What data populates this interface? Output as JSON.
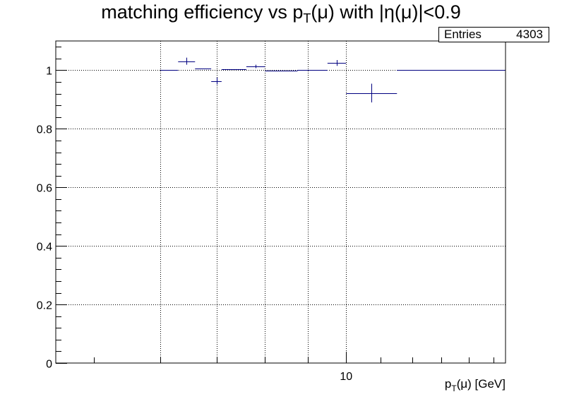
{
  "chart_data": {
    "type": "scatter",
    "title": {
      "main": "matching efficiency vs p",
      "sub": "T",
      "rest": "(μ) with |η(μ)|<0.9"
    },
    "xlabel": {
      "main": "p",
      "sub": "T",
      "rest": "(μ) [GeV]"
    },
    "ylabel": "",
    "x_scale": "log",
    "xlim": [
      4.5,
      15.5
    ],
    "ylim": [
      0,
      1.1
    ],
    "y_ticks": [
      0,
      0.2,
      0.4,
      0.6,
      0.8,
      1
    ],
    "y_tick_labels": [
      "0",
      "0.2",
      "0.4",
      "0.6",
      "0.8",
      "1"
    ],
    "x_tick_labels": [
      {
        "value": 10,
        "label": "10"
      }
    ],
    "x_grid": [
      6,
      7,
      8,
      9,
      10
    ],
    "grid": true,
    "legend": "none",
    "stats": {
      "label": "Entries",
      "value": "4303"
    },
    "points": [
      {
        "xlo": 6.0,
        "xhi": 6.3,
        "y": 1.0,
        "err": 0.0
      },
      {
        "xlo": 6.3,
        "xhi": 6.6,
        "y": 1.031,
        "err": 0.012
      },
      {
        "xlo": 6.6,
        "xhi": 6.9,
        "y": 1.006,
        "err": 0.0
      },
      {
        "xlo": 6.9,
        "xhi": 7.1,
        "y": 0.963,
        "err": 0.012
      },
      {
        "xlo": 7.1,
        "xhi": 7.6,
        "y": 1.003,
        "err": 0.0
      },
      {
        "xlo": 7.6,
        "xhi": 8.0,
        "y": 1.013,
        "err": 0.006
      },
      {
        "xlo": 8.0,
        "xhi": 8.75,
        "y": 0.998,
        "err": 0.0
      },
      {
        "xlo": 8.75,
        "xhi": 9.5,
        "y": 1.0,
        "err": 0.0
      },
      {
        "xlo": 9.5,
        "xhi": 10.0,
        "y": 1.025,
        "err": 0.01
      },
      {
        "xlo": 10.0,
        "xhi": 11.5,
        "y": 0.922,
        "err": 0.032
      },
      {
        "xlo": 11.5,
        "xhi": 15.5,
        "y": 1.0,
        "err": 0.0
      }
    ],
    "colors": {
      "markers": "#000080",
      "frame": "#000000",
      "grid": "#000000"
    }
  }
}
